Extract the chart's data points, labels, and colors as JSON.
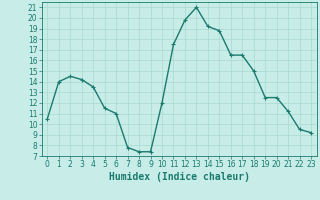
{
  "x": [
    0,
    1,
    2,
    3,
    4,
    5,
    6,
    7,
    8,
    9,
    10,
    11,
    12,
    13,
    14,
    15,
    16,
    17,
    18,
    19,
    20,
    21,
    22,
    23
  ],
  "y": [
    10.5,
    14.0,
    14.5,
    14.2,
    13.5,
    11.5,
    11.0,
    7.8,
    7.4,
    7.4,
    12.0,
    17.5,
    19.8,
    21.0,
    19.2,
    18.8,
    16.5,
    16.5,
    15.0,
    12.5,
    12.5,
    11.2,
    9.5,
    9.2
  ],
  "color": "#1a7a6e",
  "bg_color": "#c8ede8",
  "grid_color": "#a8d8d0",
  "xlabel": "Humidex (Indice chaleur)",
  "ylim": [
    7,
    21.5
  ],
  "xlim": [
    -0.5,
    23.5
  ],
  "yticks": [
    7,
    8,
    9,
    10,
    11,
    12,
    13,
    14,
    15,
    16,
    17,
    18,
    19,
    20,
    21
  ],
  "xticks": [
    0,
    1,
    2,
    3,
    4,
    5,
    6,
    7,
    8,
    9,
    10,
    11,
    12,
    13,
    14,
    15,
    16,
    17,
    18,
    19,
    20,
    21,
    22,
    23
  ],
  "marker": "+",
  "markersize": 3.5,
  "linewidth": 1.0,
  "tick_fontsize": 5.5,
  "xlabel_fontsize": 7.0
}
